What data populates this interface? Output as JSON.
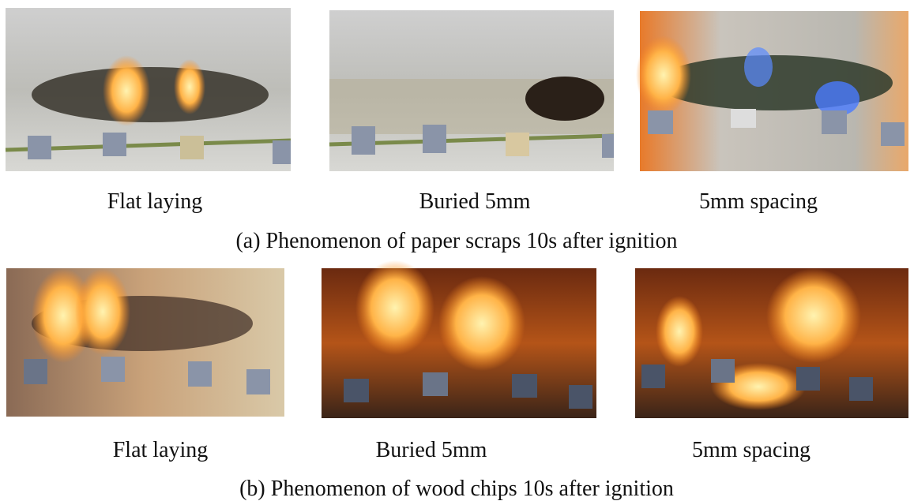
{
  "panels": [
    {
      "caption": "(a) Phenomenon of paper scraps 10s after ignition",
      "images": [
        {
          "label": "Flat laying"
        },
        {
          "label": "Buried 5mm"
        },
        {
          "label": "5mm spacing"
        }
      ]
    },
    {
      "caption": "(b) Phenomenon of wood chips 10s after ignition",
      "images": [
        {
          "label": "Flat laying"
        },
        {
          "label": "Buried 5mm"
        },
        {
          "label": "5mm spacing"
        }
      ]
    }
  ]
}
